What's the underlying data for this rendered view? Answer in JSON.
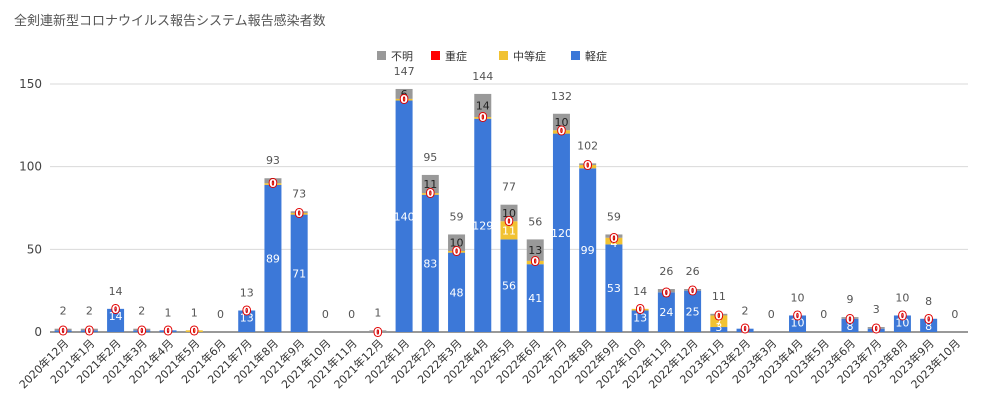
{
  "chart_data": {
    "type": "bar",
    "stacked": true,
    "title": "全剣連新型コロナウイルス報告システム報告感染者数",
    "xlabel": "",
    "ylabel": "",
    "ylim": [
      0,
      150
    ],
    "yticks": [
      0,
      50,
      100,
      150
    ],
    "grid": true,
    "legend_position": "top",
    "categories": [
      "2020年12月",
      "2021年1月",
      "2021年2月",
      "2021年3月",
      "2021年4月",
      "2021年5月",
      "2021年6月",
      "2021年7月",
      "2021年8月",
      "2021年9月",
      "2021年10月",
      "2021年11月",
      "2021年12月",
      "2022年1月",
      "2022年2月",
      "2022年3月",
      "2022年4月",
      "2022年5月",
      "2022年6月",
      "2022年7月",
      "2022年8月",
      "2022年9月",
      "2022年10月",
      "2022年11月",
      "2022年12月",
      "2023年1月",
      "2023年2月",
      "2023年3月",
      "2023年4月",
      "2023年5月",
      "2023年6月",
      "2023年7月",
      "2023年8月",
      "2023年9月",
      "2023年10月"
    ],
    "totals": [
      2,
      2,
      14,
      2,
      1,
      1,
      0,
      13,
      93,
      73,
      0,
      0,
      1,
      147,
      95,
      59,
      144,
      77,
      56,
      132,
      102,
      59,
      14,
      26,
      26,
      11,
      2,
      0,
      10,
      0,
      9,
      3,
      10,
      8,
      0
    ],
    "series": [
      {
        "name": "軽症",
        "color": "#3c78d8",
        "values": [
          1,
          1,
          14,
          1,
          1,
          0,
          0,
          13,
          89,
          71,
          0,
          0,
          0,
          140,
          83,
          48,
          129,
          56,
          41,
          120,
          99,
          53,
          13,
          24,
          25,
          3,
          2,
          0,
          10,
          0,
          8,
          2,
          10,
          8,
          0
        ]
      },
      {
        "name": "中等症",
        "color": "#f1c232",
        "values": [
          0,
          0,
          0,
          0,
          0,
          1,
          0,
          0,
          1,
          1,
          0,
          0,
          0,
          1,
          1,
          1,
          1,
          11,
          2,
          2,
          2,
          4,
          1,
          0,
          0,
          7,
          0,
          0,
          0,
          0,
          0,
          0,
          0,
          0,
          0
        ]
      },
      {
        "name": "重症",
        "color": "#ff0000",
        "values": [
          0,
          0,
          0,
          0,
          0,
          0,
          0,
          0,
          0,
          0,
          0,
          0,
          0,
          0,
          0,
          0,
          0,
          0,
          0,
          0,
          0,
          0,
          0,
          0,
          0,
          0,
          0,
          0,
          0,
          0,
          0,
          0,
          0,
          0,
          0
        ]
      },
      {
        "name": "不明",
        "color": "#999999",
        "values": [
          1,
          1,
          0,
          1,
          0,
          0,
          0,
          0,
          3,
          1,
          0,
          0,
          1,
          6,
          11,
          10,
          14,
          10,
          13,
          10,
          1,
          2,
          0,
          2,
          1,
          1,
          0,
          0,
          0,
          0,
          1,
          1,
          0,
          0,
          0
        ]
      }
    ],
    "legend_order": [
      "不明",
      "重症",
      "中等症",
      "軽症"
    ]
  }
}
